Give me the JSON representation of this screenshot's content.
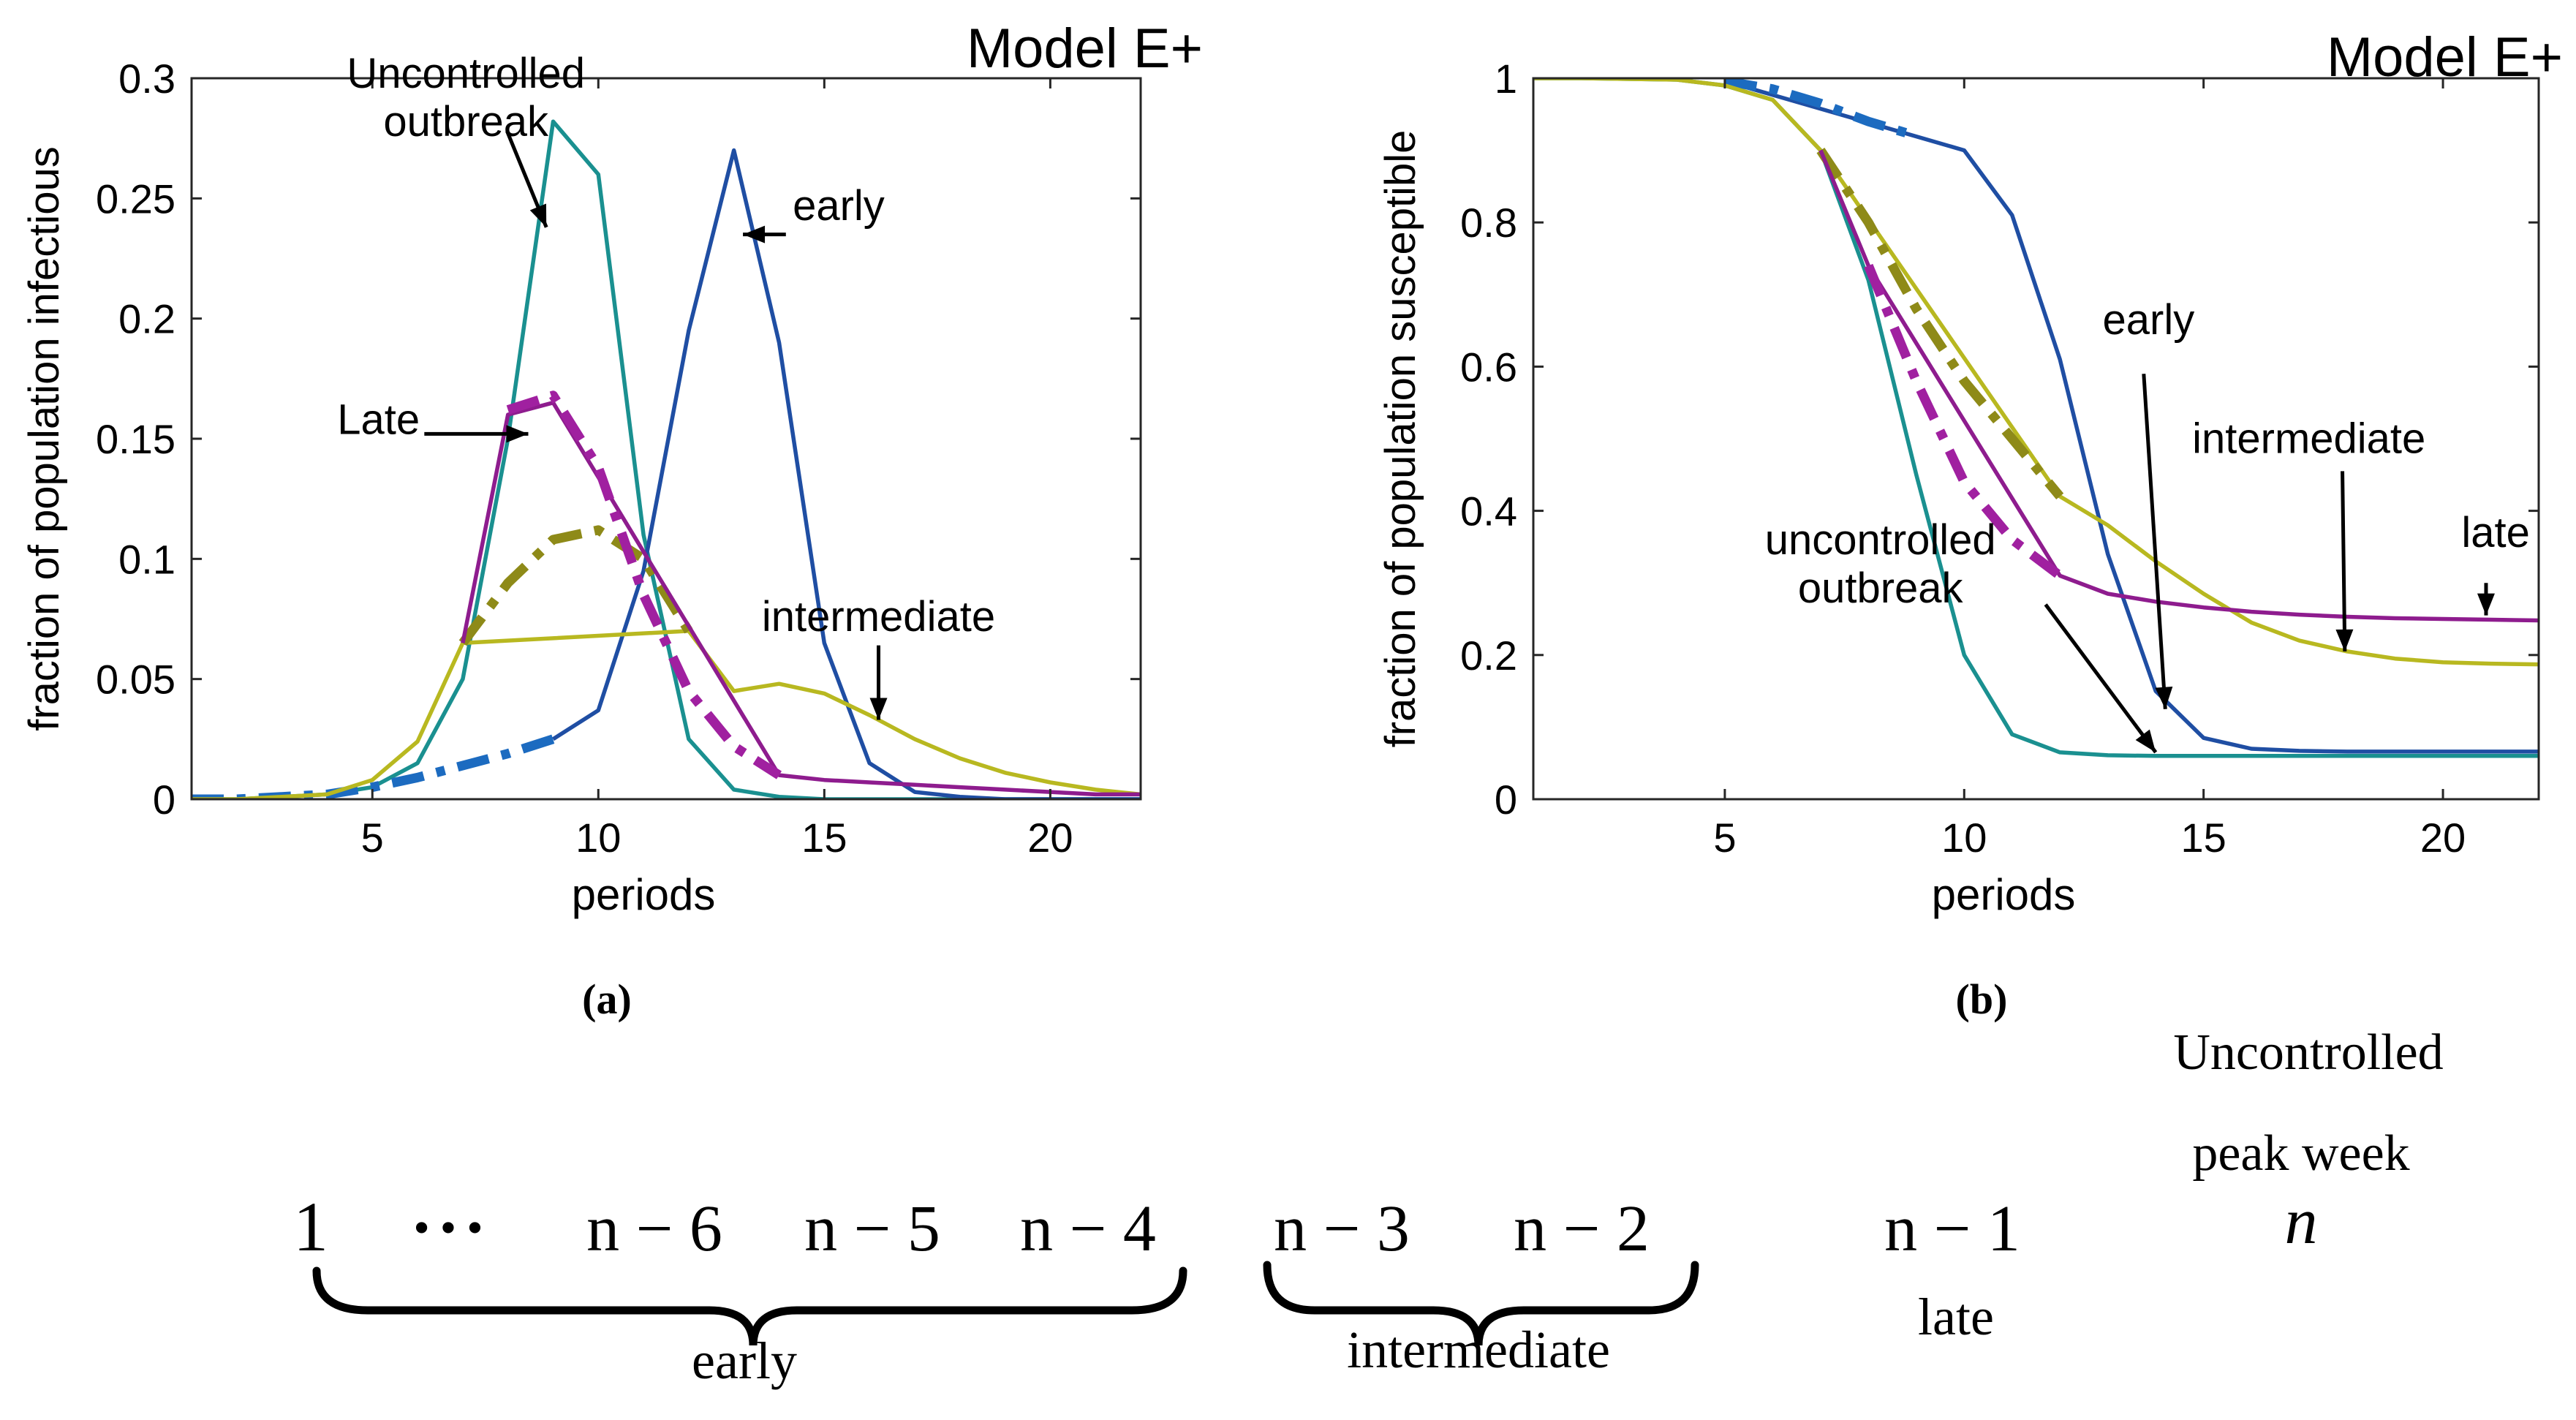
{
  "charts": [
    {
      "type": "line",
      "panel_label": "(a)",
      "title": "Model E+",
      "xlabel": "periods",
      "ylabel": "fraction of population infectious",
      "xlim": [
        1,
        22
      ],
      "ylim": [
        0,
        0.3
      ],
      "xticks": [
        5,
        10,
        15,
        20
      ],
      "xtick_labels": [
        "5",
        "10",
        "15",
        "20"
      ],
      "yticks": [
        0,
        0.05,
        0.1,
        0.15,
        0.2,
        0.25,
        0.3
      ],
      "ytick_labels": [
        "0",
        "0.05",
        "0.1",
        "0.15",
        "0.2",
        "0.25",
        "0.3"
      ],
      "series": [
        {
          "name": "uncontrolled",
          "color": "#1a9090",
          "dash": false,
          "x": [
            1,
            2,
            3,
            4,
            5,
            6,
            7,
            8,
            9,
            10,
            11,
            12,
            13,
            14,
            15,
            16,
            17,
            18,
            19,
            20,
            21,
            22
          ],
          "y": [
            0,
            0,
            0.001,
            0.002,
            0.005,
            0.015,
            0.05,
            0.15,
            0.282,
            0.26,
            0.11,
            0.025,
            0.004,
            0.001,
            0,
            0,
            0,
            0,
            0,
            0,
            0,
            0
          ]
        },
        {
          "name": "early-solid",
          "color": "#1f4ea3",
          "dash": false,
          "x": [
            9,
            10,
            11,
            12,
            13,
            14,
            15,
            16,
            17,
            18,
            19,
            20,
            21,
            22
          ],
          "y": [
            0.025,
            0.037,
            0.095,
            0.195,
            0.27,
            0.19,
            0.065,
            0.015,
            0.003,
            0.001,
            0,
            0,
            0,
            0
          ]
        },
        {
          "name": "early-dashed",
          "color": "#1c6bc0",
          "dash": true,
          "x": [
            1,
            2,
            3,
            4,
            5,
            6,
            7,
            8,
            9
          ],
          "y": [
            0,
            0,
            0.001,
            0.002,
            0.005,
            0.009,
            0.014,
            0.019,
            0.025
          ]
        },
        {
          "name": "intermediate-solid",
          "color": "#b8b820",
          "dash": false,
          "x": [
            1,
            2,
            3,
            4,
            5,
            6,
            7,
            12,
            13,
            14,
            15,
            16,
            17,
            18,
            19,
            20,
            21,
            22
          ],
          "y": [
            0,
            0,
            0.001,
            0.002,
            0.008,
            0.024,
            0.065,
            0.07,
            0.045,
            0.048,
            0.044,
            0.035,
            0.025,
            0.017,
            0.011,
            0.007,
            0.004,
            0.002
          ]
        },
        {
          "name": "intermediate-dashed",
          "color": "#8e8a18",
          "dash": true,
          "x": [
            7,
            8,
            9,
            10,
            11,
            12
          ],
          "y": [
            0.065,
            0.09,
            0.108,
            0.112,
            0.1,
            0.07
          ]
        },
        {
          "name": "late-solid",
          "color": "#8e1c8e",
          "dash": false,
          "x": [
            7,
            8,
            9,
            14,
            15,
            16,
            17,
            18,
            19,
            20,
            21,
            22
          ],
          "y": [
            0.065,
            0.16,
            0.165,
            0.01,
            0.008,
            0.007,
            0.006,
            0.005,
            0.004,
            0.003,
            0.002,
            0.002
          ]
        },
        {
          "name": "late-dashed",
          "color": "#a020a0",
          "dash": true,
          "x": [
            8,
            9,
            10,
            11,
            12,
            13,
            14
          ],
          "y": [
            0.162,
            0.168,
            0.138,
            0.085,
            0.045,
            0.022,
            0.01
          ]
        }
      ],
      "annotations": [
        {
          "lines": [
            "Uncontrolled",
            "outbreak"
          ],
          "align": "middle",
          "tx": 7.07,
          "ty": 0.296,
          "ax": 7.98,
          "ay": 0.278,
          "bx": 8.85,
          "by": 0.238
        },
        {
          "lines": [
            "early"
          ],
          "align": "start",
          "tx": 14.3,
          "ty": 0.241,
          "ax": 14.15,
          "ay": 0.235,
          "bx": 13.2,
          "by": 0.235
        },
        {
          "lines": [
            "Late"
          ],
          "align": "end",
          "tx": 6.05,
          "ty": 0.152,
          "ax": 6.15,
          "ay": 0.152,
          "bx": 8.45,
          "by": 0.152
        },
        {
          "lines": [
            "intermediate"
          ],
          "align": "middle",
          "tx": 16.2,
          "ty": 0.07,
          "ax": 16.2,
          "ay": 0.064,
          "bx": 16.2,
          "by": 0.033
        }
      ]
    },
    {
      "type": "line",
      "panel_label": "(b)",
      "title": "Model E+",
      "xlabel": "periods",
      "ylabel": "fraction of population susceptible",
      "xlim": [
        1,
        22
      ],
      "ylim": [
        0,
        1.0
      ],
      "xticks": [
        5,
        10,
        15,
        20
      ],
      "xtick_labels": [
        "5",
        "10",
        "15",
        "20"
      ],
      "yticks": [
        0,
        0.2,
        0.4,
        0.6,
        0.8,
        1.0
      ],
      "ytick_labels": [
        "0",
        "0.2",
        "0.4",
        "0.6",
        "0.8",
        "1"
      ],
      "series": [
        {
          "name": "uncontrolled",
          "color": "#1a9090",
          "dash": false,
          "x": [
            1,
            2,
            3,
            4,
            5,
            6,
            7,
            8,
            9,
            10,
            11,
            12,
            13,
            14,
            15,
            16,
            17,
            18,
            19,
            20,
            21,
            22
          ],
          "y": [
            1,
            1,
            0.999,
            0.998,
            0.99,
            0.97,
            0.9,
            0.72,
            0.45,
            0.2,
            0.09,
            0.065,
            0.061,
            0.06,
            0.06,
            0.06,
            0.06,
            0.06,
            0.06,
            0.06,
            0.06,
            0.06
          ]
        },
        {
          "name": "early-solid",
          "color": "#1f4ea3",
          "dash": false,
          "x": [
            5,
            10,
            11,
            12,
            13,
            14,
            15,
            16,
            17,
            18,
            19,
            20,
            21,
            22
          ],
          "y": [
            0.996,
            0.9,
            0.81,
            0.61,
            0.34,
            0.15,
            0.085,
            0.07,
            0.067,
            0.066,
            0.066,
            0.066,
            0.066,
            0.066
          ]
        },
        {
          "name": "early-dashed",
          "color": "#1c6bc0",
          "dash": true,
          "x": [
            5,
            6,
            7,
            8,
            9
          ],
          "y": [
            0.996,
            0.985,
            0.965,
            0.94,
            0.92
          ]
        },
        {
          "name": "intermediate-solid",
          "color": "#b8b820",
          "dash": false,
          "x": [
            1,
            2,
            3,
            4,
            5,
            6,
            7,
            12,
            13,
            14,
            15,
            16,
            17,
            18,
            19,
            20,
            21,
            22
          ],
          "y": [
            1,
            1,
            0.999,
            0.998,
            0.99,
            0.97,
            0.9,
            0.42,
            0.38,
            0.33,
            0.285,
            0.245,
            0.22,
            0.205,
            0.195,
            0.19,
            0.188,
            0.187
          ]
        },
        {
          "name": "intermediate-dashed",
          "color": "#8e8a18",
          "dash": true,
          "x": [
            7,
            8,
            9,
            10,
            11,
            12
          ],
          "y": [
            0.9,
            0.8,
            0.68,
            0.58,
            0.5,
            0.42
          ]
        },
        {
          "name": "late-solid",
          "color": "#8e1c8e",
          "dash": false,
          "x": [
            7,
            8,
            12,
            13,
            14,
            15,
            16,
            17,
            18,
            19,
            20,
            21,
            22
          ],
          "y": [
            0.9,
            0.74,
            0.31,
            0.285,
            0.274,
            0.266,
            0.26,
            0.256,
            0.253,
            0.251,
            0.25,
            0.249,
            0.248
          ]
        },
        {
          "name": "late-dashed",
          "color": "#a020a0",
          "dash": true,
          "x": [
            8,
            9,
            10,
            11,
            12
          ],
          "y": [
            0.74,
            0.58,
            0.44,
            0.36,
            0.31
          ]
        }
      ],
      "annotations": [
        {
          "lines": [
            "early"
          ],
          "align": "middle",
          "tx": 13.85,
          "ty": 0.645,
          "ax": 13.75,
          "ay": 0.59,
          "bx": 14.2,
          "by": 0.125
        },
        {
          "lines": [
            "intermediate"
          ],
          "align": "middle",
          "tx": 17.2,
          "ty": 0.48,
          "ax": 17.9,
          "ay": 0.455,
          "bx": 17.95,
          "by": 0.205
        },
        {
          "lines": [
            "late"
          ],
          "align": "middle",
          "tx": 21.1,
          "ty": 0.35,
          "ax": 20.9,
          "ay": 0.3,
          "bx": 20.9,
          "by": 0.255
        },
        {
          "lines": [
            "uncontrolled",
            "outbreak"
          ],
          "align": "middle",
          "tx": 8.25,
          "ty": 0.34,
          "ax": 11.7,
          "ay": 0.27,
          "bx": 14.0,
          "by": 0.065
        }
      ]
    }
  ],
  "timeline": {
    "items": [
      "1",
      "•••",
      "n − 6",
      "n − 5",
      "n − 4",
      "n − 3",
      "n − 2",
      "n − 1",
      "n"
    ],
    "group_labels": [
      "early",
      "intermediate",
      "late"
    ],
    "peak_label": [
      "Uncontrolled",
      "peak week"
    ]
  }
}
